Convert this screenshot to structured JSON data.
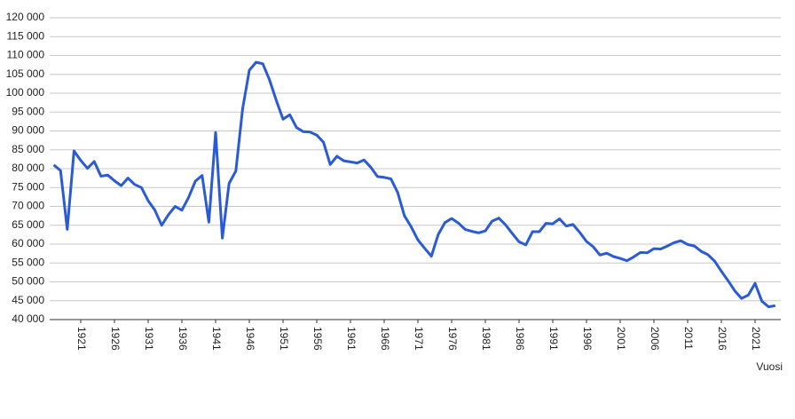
{
  "chart_data": {
    "type": "line",
    "x_label": "Vuosi",
    "x": [
      1917,
      1918,
      1919,
      1920,
      1921,
      1922,
      1923,
      1924,
      1925,
      1926,
      1927,
      1928,
      1929,
      1930,
      1931,
      1932,
      1933,
      1934,
      1935,
      1936,
      1937,
      1938,
      1939,
      1940,
      1941,
      1942,
      1943,
      1944,
      1945,
      1946,
      1947,
      1948,
      1949,
      1950,
      1951,
      1952,
      1953,
      1954,
      1955,
      1956,
      1957,
      1958,
      1959,
      1960,
      1961,
      1962,
      1963,
      1964,
      1965,
      1966,
      1967,
      1968,
      1969,
      1970,
      1971,
      1972,
      1973,
      1974,
      1975,
      1976,
      1977,
      1978,
      1979,
      1980,
      1981,
      1982,
      1983,
      1984,
      1985,
      1986,
      1987,
      1988,
      1989,
      1990,
      1991,
      1992,
      1993,
      1994,
      1995,
      1996,
      1997,
      1998,
      1999,
      2000,
      2001,
      2002,
      2003,
      2004,
      2005,
      2006,
      2007,
      2008,
      2009,
      2010,
      2011,
      2012,
      2013,
      2014,
      2015,
      2016,
      2017,
      2018,
      2019,
      2020,
      2021,
      2022,
      2023,
      2024
    ],
    "series": [
      {
        "color": "#2b5bd4",
        "values": [
          81000,
          79500,
          63900,
          84700,
          82200,
          80100,
          81900,
          78000,
          78300,
          76800,
          75500,
          77500,
          75800,
          75000,
          71500,
          69000,
          65000,
          67800,
          70000,
          69000,
          72400,
          76700,
          78200,
          65800,
          89600,
          61600,
          76100,
          79400,
          95800,
          106100,
          108200,
          107800,
          103500,
          98100,
          93100,
          94300,
          90900,
          89800,
          89700,
          88900,
          87000,
          81100,
          83300,
          82100,
          81800,
          81500,
          82300,
          80400,
          77900,
          77700,
          77300,
          73700,
          67500,
          64600,
          61100,
          58900,
          56800,
          62500,
          65700,
          66800,
          65600,
          63900,
          63400,
          63000,
          63500,
          66100,
          66900,
          65100,
          62800,
          60600,
          59800,
          63300,
          63300,
          65500,
          65400,
          66700,
          64800,
          65200,
          63100,
          60700,
          59300,
          57100,
          57600,
          56700,
          56200,
          55600,
          56600,
          57800,
          57700,
          58800,
          58700,
          59500,
          60400,
          60900,
          59900,
          59500,
          58100,
          57200,
          55500,
          52800,
          50300,
          47600,
          45600,
          46500,
          49600,
          44900,
          43400,
          43700
        ]
      }
    ],
    "xlim": [
      1917,
      2024
    ],
    "xticks": [
      1921,
      1926,
      1931,
      1936,
      1941,
      1946,
      1951,
      1956,
      1961,
      1966,
      1971,
      1976,
      1981,
      1986,
      1991,
      1996,
      2001,
      2006,
      2011,
      2016,
      2021
    ],
    "ylim": [
      40000,
      120000
    ],
    "yticks": [
      {
        "value": 40000,
        "label": "40 000"
      },
      {
        "value": 45000,
        "label": "45 000"
      },
      {
        "value": 50000,
        "label": "50 000"
      },
      {
        "value": 55000,
        "label": "55 000"
      },
      {
        "value": 60000,
        "label": "60 000"
      },
      {
        "value": 65000,
        "label": "65 000"
      },
      {
        "value": 70000,
        "label": "70 000"
      },
      {
        "value": 75000,
        "label": "75 000"
      },
      {
        "value": 80000,
        "label": "80 000"
      },
      {
        "value": 85000,
        "label": "85 000"
      },
      {
        "value": 90000,
        "label": "90 000"
      },
      {
        "value": 95000,
        "label": "95 000"
      },
      {
        "value": 100000,
        "label": "100 000"
      },
      {
        "value": 105000,
        "label": "105 000"
      },
      {
        "value": 110000,
        "label": "110 000"
      },
      {
        "value": 115000,
        "label": "115 000"
      },
      {
        "value": 120000,
        "label": "120 000"
      }
    ],
    "grid": true
  }
}
